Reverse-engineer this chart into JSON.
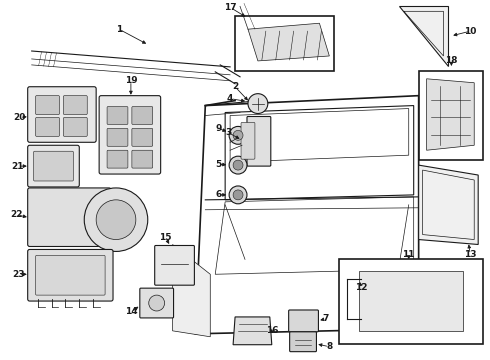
{
  "background_color": "#ffffff",
  "line_color": "#1a1a1a",
  "figure_width": 4.9,
  "figure_height": 3.6,
  "dpi": 100
}
